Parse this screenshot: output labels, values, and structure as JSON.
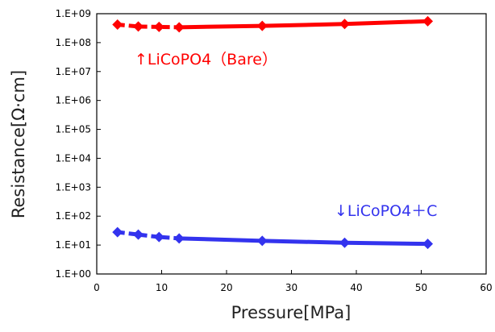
{
  "chart_data": {
    "type": "line",
    "xlabel": "Pressure[MPa]",
    "ylabel": "Resistance[Ω·cm]",
    "xlim": [
      0,
      60
    ],
    "xticks": [
      "0",
      "10",
      "20",
      "30",
      "40",
      "50",
      "60"
    ],
    "ylim": [
      1,
      1000000000
    ],
    "yscale": "log",
    "yticks": [
      "1.E+00",
      "1.E+01",
      "1.E+02",
      "1.E+03",
      "1.E+04",
      "1.E+05",
      "1.E+06",
      "1.E+07",
      "1.E+08",
      "1.E+09"
    ],
    "grid": false,
    "series": [
      {
        "color": "#ff0000",
        "x": [
          3.2,
          6.4,
          9.6,
          12.7,
          25.5,
          38.2,
          51.0
        ],
        "y": [
          420000000,
          360000000,
          350000000,
          340000000,
          380000000,
          440000000,
          550000000
        ]
      },
      {
        "color": "#3333ee",
        "x": [
          3.2,
          6.4,
          9.6,
          12.7,
          25.5,
          38.2,
          51.0
        ],
        "y": [
          28,
          23,
          19,
          17,
          14,
          12,
          11
        ]
      }
    ],
    "annotations": [
      {
        "text": "↑LiCoPO4（Bare）",
        "color": "#ff0000"
      },
      {
        "text": "↓LiCoPO4＋C",
        "color": "#3333ee"
      }
    ]
  }
}
